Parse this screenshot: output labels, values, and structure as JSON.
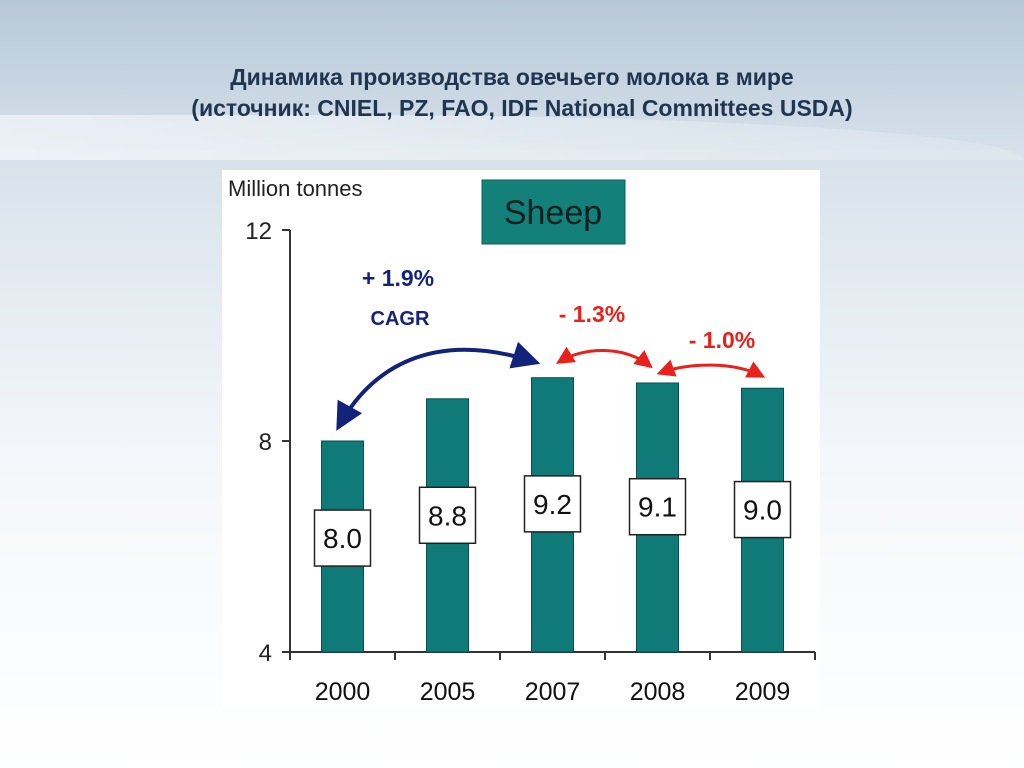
{
  "slide": {
    "title_line1": "Динамика производства овечьего молока в мире",
    "title_line2": "(источник: CNIEL, PZ, FAO, IDF National Committees USDA)"
  },
  "chart_data": {
    "type": "bar",
    "title": "Sheep",
    "ylabel": "Million tonnes",
    "xlabel": "",
    "categories": [
      "2000",
      "2005",
      "2007",
      "2008",
      "2009"
    ],
    "values": [
      8.0,
      8.8,
      9.2,
      9.1,
      9.0
    ],
    "value_labels": [
      "8.0",
      "8.8",
      "9.2",
      "9.1",
      "9.0"
    ],
    "ylim": [
      4,
      12
    ],
    "yticks": [
      "4",
      "8",
      "12"
    ],
    "annotations": {
      "cagr_value": "+ 1.9%",
      "cagr_label": "CAGR",
      "change_2007_2008": "- 1.3%",
      "change_2008_2009": "- 1.0%"
    },
    "colors": {
      "bar": "#0f7a78",
      "title_box": "#138179",
      "cagr_arrow": "#13237a",
      "change_arrow": "#e8221b"
    },
    "grid": false
  }
}
